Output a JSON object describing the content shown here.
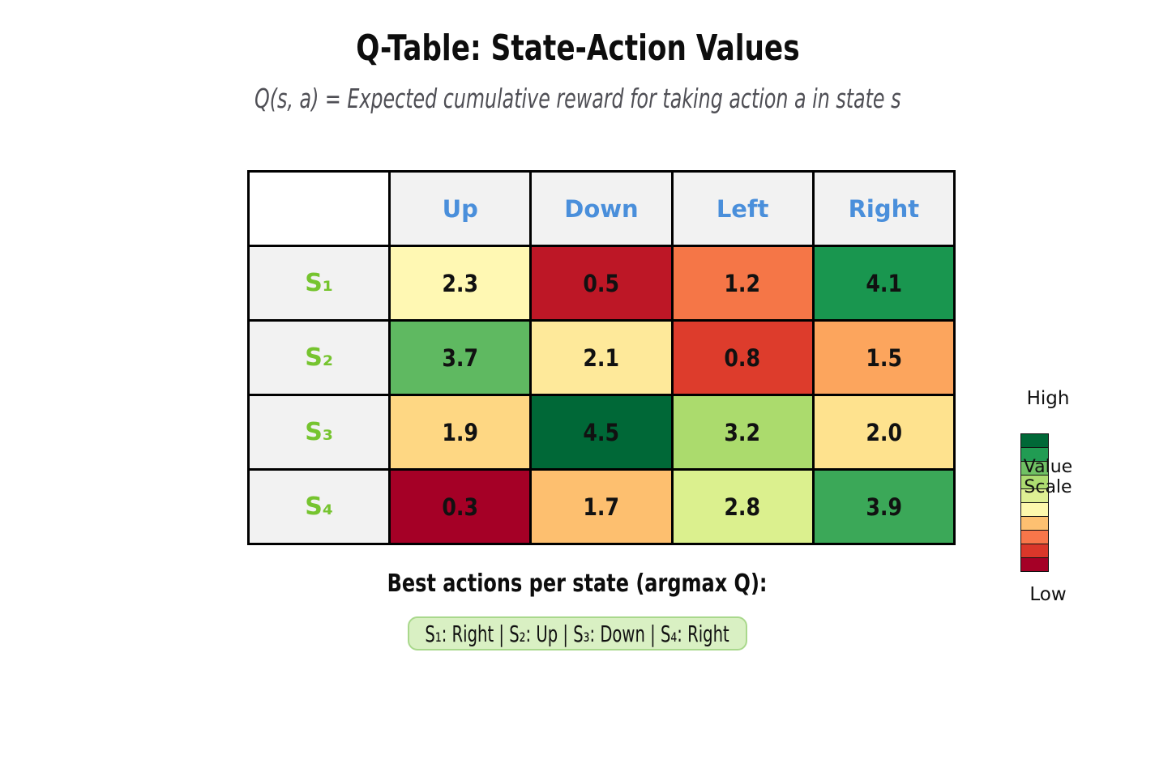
{
  "title": "Q-Table: State-Action Values",
  "subtitle": "Q(s, a) = Expected cumulative reward for taking action a in state s",
  "footer": {
    "heading": "Best actions per state (argmax Q):",
    "summary": "S₁: Right | S₂: Up | S₃: Down | S₄: Right"
  },
  "legend": {
    "high_label": "High",
    "low_label": "Low",
    "title_lines": [
      "Value",
      "Scale"
    ],
    "swatches": [
      "#006837",
      "#219c53",
      "#70c164",
      "#aedc71",
      "#dff094",
      "#fdf8ad",
      "#fdc071",
      "#f8764a",
      "#da372a",
      "#a50026"
    ]
  },
  "colors": {
    "title_text": "#0d0d0d",
    "subtitle_text": "#4f4f55",
    "header_text": "#4a8fdb",
    "state_text": "#76c42f",
    "header_bg": "#f2f2f2",
    "table_border": "#000000",
    "value_text": "#111111",
    "legend_text": "#111111",
    "pill_bg": "#d9f0c3",
    "pill_border": "#a9d88c"
  },
  "chart_data": {
    "type": "heatmap",
    "title": "Q-Table: State-Action Values",
    "subtitle": "Q(s, a) = Expected cumulative reward for taking action a in state s",
    "columns": [
      "Up",
      "Down",
      "Left",
      "Right"
    ],
    "rows": [
      "S₁",
      "S₂",
      "S₃",
      "S₄"
    ],
    "values": [
      [
        2.3,
        0.5,
        1.2,
        4.1
      ],
      [
        3.7,
        2.1,
        0.8,
        1.5
      ],
      [
        1.9,
        4.5,
        3.2,
        2.0
      ],
      [
        0.3,
        1.7,
        2.8,
        3.9
      ]
    ],
    "cell_colors": [
      [
        "#fff8b3",
        "#bd1726",
        "#f57647",
        "#19964f"
      ],
      [
        "#5fb961",
        "#fee99a",
        "#dd3c2c",
        "#fca55d"
      ],
      [
        "#fed783",
        "#006837",
        "#abdb6d",
        "#fee28e"
      ],
      [
        "#a50026",
        "#fdbf6f",
        "#dbf08e",
        "#3ba858"
      ]
    ],
    "value_range": [
      0.3,
      4.5
    ],
    "colormap": "RdYlGn",
    "legend_position": "right",
    "legend_labels": {
      "high": "High",
      "low": "Low",
      "title": "Value Scale"
    },
    "best_actions": [
      {
        "state": "S₁",
        "action": "Right"
      },
      {
        "state": "S₂",
        "action": "Up"
      },
      {
        "state": "S₃",
        "action": "Down"
      },
      {
        "state": "S₄",
        "action": "Right"
      }
    ]
  }
}
